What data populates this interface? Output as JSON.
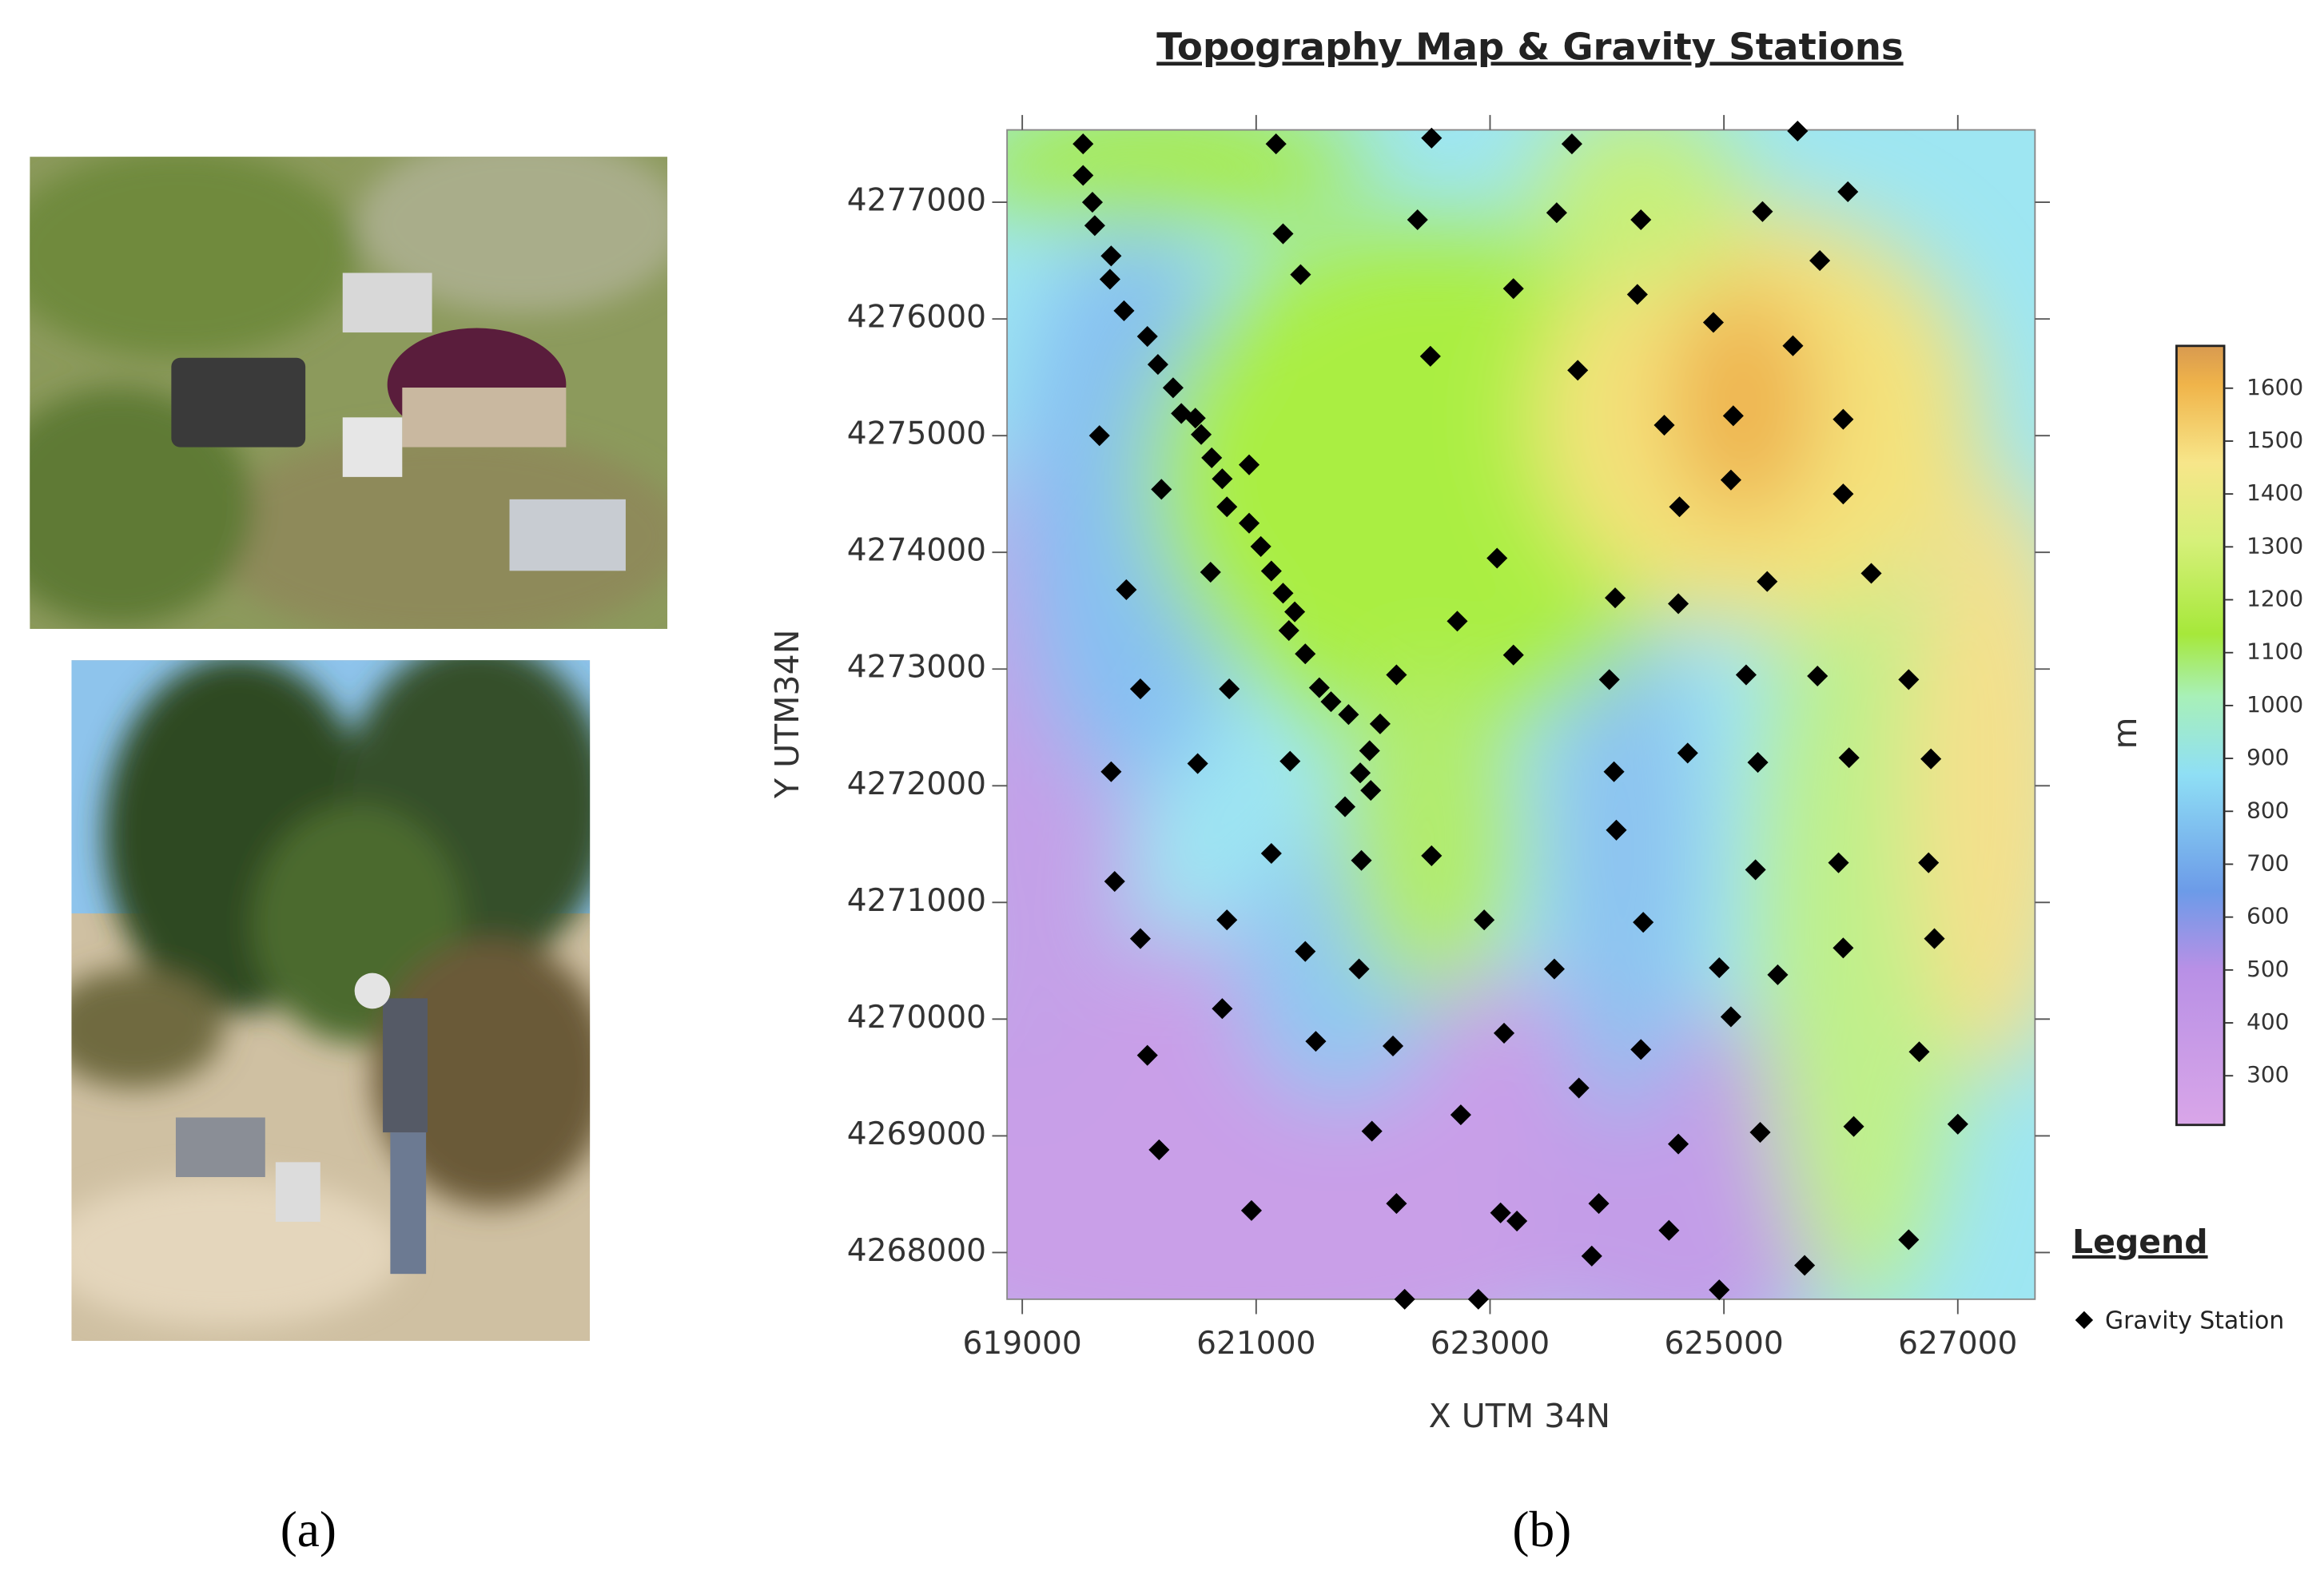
{
  "captions": [
    "(a)",
    "(b)"
  ],
  "chart_data": {
    "type": "scatter",
    "title": "Topography Map & Gravity Stations",
    "x_label": "X UTM 34N",
    "y_label": "Y UTM34N",
    "xlim": [
      618870,
      627660
    ],
    "ylim": [
      4267600,
      4277620
    ],
    "xticks": [
      619000,
      621000,
      623000,
      625000,
      627000
    ],
    "yticks": [
      4268000,
      4269000,
      4270000,
      4271000,
      4272000,
      4273000,
      4274000,
      4275000,
      4276000,
      4277000
    ],
    "legend_title": "Legend",
    "colorbar": {
      "label": "m",
      "lim": [
        207,
        1680
      ],
      "ticks": [
        300,
        400,
        500,
        600,
        700,
        800,
        900,
        1000,
        1100,
        1200,
        1300,
        1400,
        1500,
        1600
      ]
    },
    "series": [
      {
        "name": "Gravity Station",
        "color": "#000000",
        "x": [
          619520,
          619520,
          619600,
          619620,
          619760,
          619750,
          619870,
          620070,
          620160,
          620290,
          620360,
          620480,
          620530,
          620620,
          620710,
          620750,
          620940,
          620940,
          621040,
          621130,
          621230,
          621330,
          621280,
          621420,
          621540,
          621640,
          621790,
          622060,
          621970,
          621890,
          621980,
          621760,
          621170,
          621230,
          621380,
          622500,
          622380,
          622490,
          623200,
          623700,
          623570,
          624290,
          624260,
          623750,
          625630,
          626060,
          625330,
          625820,
          624910,
          625590,
          625080,
          624490,
          625060,
          626020,
          626020,
          624620,
          625370,
          626260,
          619660,
          620190,
          620610,
          619890,
          623060,
          622720,
          624070,
          624610,
          623200,
          622200,
          624020,
          625190,
          625800,
          626580,
          620010,
          620770,
          621290,
          620500,
          619760,
          624690,
          624060,
          625290,
          626070,
          626770,
          624080,
          621130,
          621900,
          622500,
          625270,
          625980,
          626750,
          619790,
          620750,
          620010,
          621420,
          621880,
          622950,
          623550,
          624310,
          624960,
          625460,
          626020,
          626800,
          620710,
          621510,
          622170,
          623120,
          625060,
          620070,
          623760,
          624290,
          626670,
          620170,
          621990,
          622750,
          624610,
          625310,
          626110,
          627000,
          620960,
          622200,
          623090,
          623230,
          623930,
          624530,
          623870,
          626580,
          625690,
          622270,
          622900,
          624960
        ],
        "values": [
          4277500,
          4277230,
          4277000,
          4276800,
          4276540,
          4276340,
          4276070,
          4275850,
          4275610,
          4275410,
          4275190,
          4275150,
          4275010,
          4274810,
          4274630,
          4274390,
          4274750,
          4274250,
          4274050,
          4273840,
          4273650,
          4273490,
          4273330,
          4273130,
          4272840,
          4272720,
          4272610,
          4272530,
          4272300,
          4272110,
          4271960,
          4271820,
          4277500,
          4276730,
          4276380,
          4277550,
          4276850,
          4275680,
          4276260,
          4277500,
          4276910,
          4276850,
          4276210,
          4275560,
          4277610,
          4277090,
          4276920,
          4276500,
          4275970,
          4275770,
          4275170,
          4275090,
          4274620,
          4275140,
          4274500,
          4274390,
          4273750,
          4273820,
          4275000,
          4274540,
          4273830,
          4273680,
          4273950,
          4273410,
          4273610,
          4273560,
          4273120,
          4272950,
          4272910,
          4272950,
          4272940,
          4272910,
          4272830,
          4272830,
          4272210,
          4272190,
          4272120,
          4272280,
          4272120,
          4272200,
          4272240,
          4272230,
          4271620,
          4271420,
          4271360,
          4271400,
          4271280,
          4271340,
          4271340,
          4271180,
          4270850,
          4270690,
          4270580,
          4270430,
          4270850,
          4270430,
          4270830,
          4270440,
          4270380,
          4270610,
          4270690,
          4270090,
          4269810,
          4269770,
          4269880,
          4270020,
          4269690,
          4269410,
          4269740,
          4269720,
          4268880,
          4269040,
          4269180,
          4268930,
          4269030,
          4269080,
          4269100,
          4268360,
          4268420,
          4268340,
          4268270,
          4268420,
          4268190,
          4267970,
          4268110,
          4267890,
          4267600,
          4267600,
          4267680
        ]
      }
    ]
  }
}
